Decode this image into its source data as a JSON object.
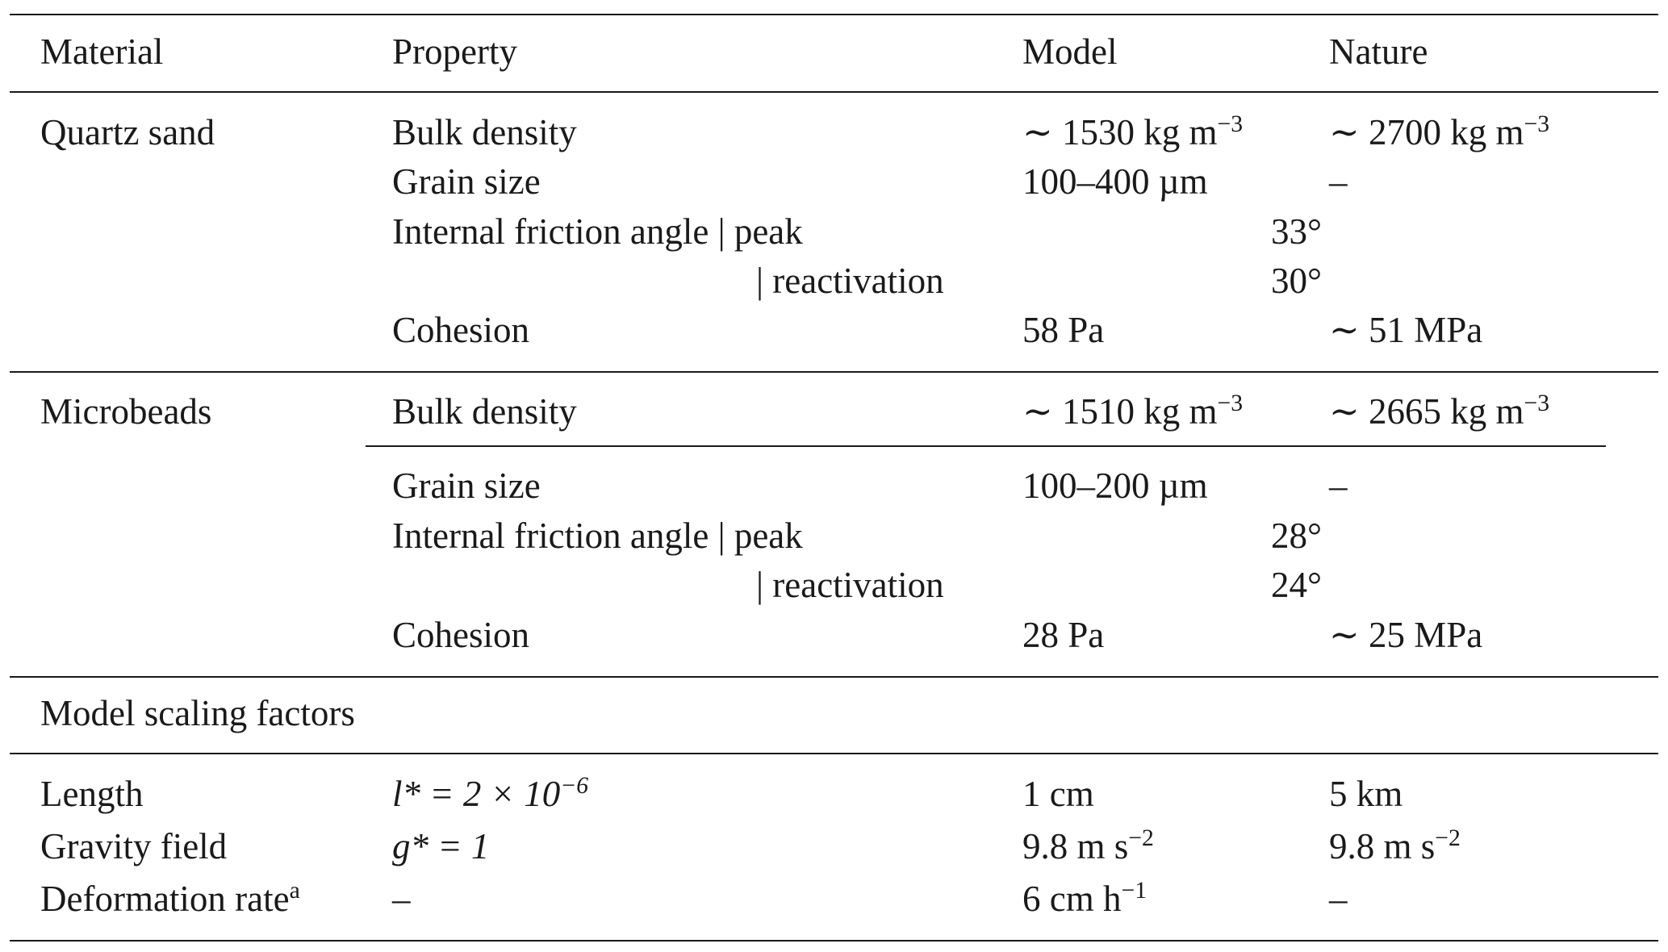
{
  "header": {
    "material": "Material",
    "property": "Property",
    "model": "Model",
    "nature": "Nature"
  },
  "quartz": {
    "material": "Quartz sand",
    "bulk_density": {
      "property": "Bulk density",
      "model": "∼ 1530 kg m",
      "model_exp": "−3",
      "nature": "∼ 2700 kg m",
      "nature_exp": "−3"
    },
    "grain_size": {
      "property": "Grain size",
      "model": "100–400 µm",
      "nature": "–"
    },
    "friction_peak": {
      "property": "Internal friction angle | peak",
      "value": "33°"
    },
    "friction_react": {
      "property": "| reactivation",
      "value": "30°"
    },
    "cohesion": {
      "property": "Cohesion",
      "model": "58 Pa",
      "nature": "∼ 51 MPa"
    }
  },
  "microbeads": {
    "material": "Microbeads",
    "bulk_density": {
      "property": "Bulk density",
      "model": "∼ 1510 kg m",
      "model_exp": "−3",
      "nature": "∼ 2665 kg m",
      "nature_exp": "−3"
    },
    "grain_size": {
      "property": "Grain size",
      "model": "100–200 µm",
      "nature": "–"
    },
    "friction_peak": {
      "property": "Internal friction angle | peak",
      "value": "28°"
    },
    "friction_react": {
      "property": "| reactivation",
      "value": "24°"
    },
    "cohesion": {
      "property": "Cohesion",
      "model": "28 Pa",
      "nature": "∼ 25 MPa"
    }
  },
  "scaling": {
    "title": "Model scaling factors",
    "length": {
      "label": "Length",
      "factor": "l* = 2 × 10",
      "factor_exp": "−6",
      "model": "1 cm",
      "nature": "5 km"
    },
    "gravity": {
      "label": "Gravity field",
      "factor": "g* = 1",
      "model": "9.8 m s",
      "model_exp": "−2",
      "nature": "9.8 m s",
      "nature_exp": "−2"
    },
    "deformation": {
      "label": "Deformation rate",
      "label_sup": "a",
      "factor": "–",
      "model": "6 cm h",
      "model_exp": "−1",
      "nature": "–"
    }
  }
}
